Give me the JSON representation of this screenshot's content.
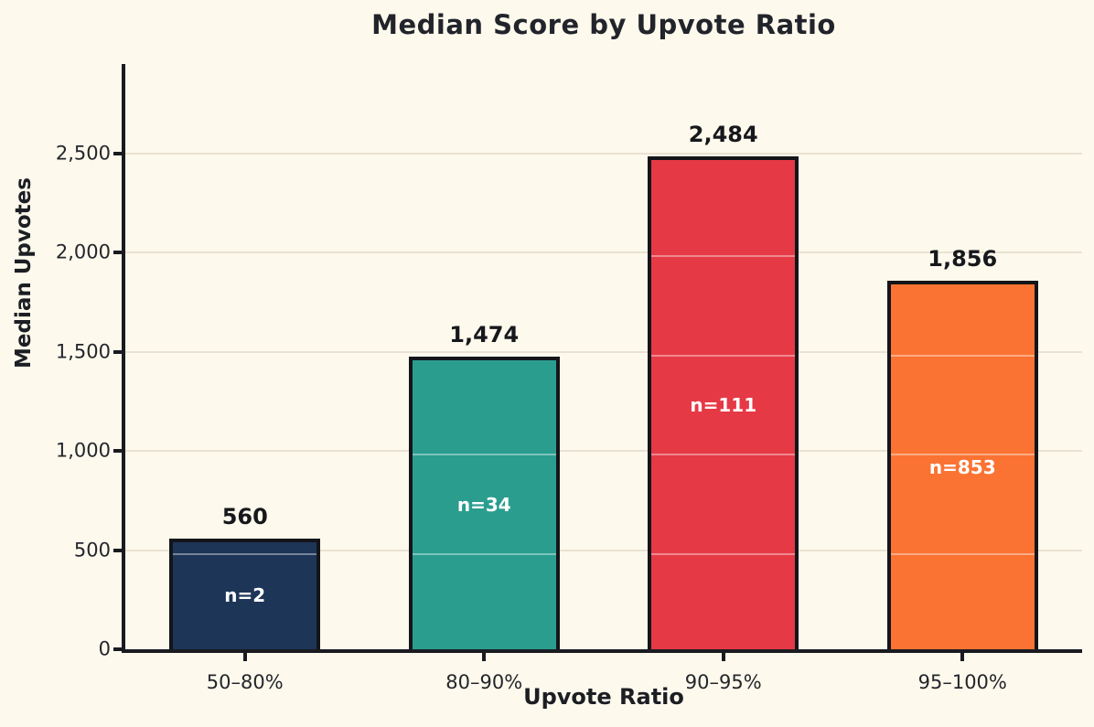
{
  "chart_data": {
    "type": "bar",
    "title": "Median Score by Upvote Ratio",
    "xlabel": "Upvote Ratio",
    "ylabel": "Median Upvotes",
    "categories": [
      "50–80%",
      "80–90%",
      "90–95%",
      "95–100%"
    ],
    "values": [
      560,
      1474,
      2484,
      1856
    ],
    "value_labels": [
      "560",
      "1,474",
      "2,484",
      "1,856"
    ],
    "n_labels": [
      "n=2",
      "n=34",
      "n=111",
      "n=853"
    ],
    "bar_colors": [
      "#1d3557",
      "#2a9d8f",
      "#e63946",
      "#fb7333"
    ],
    "ylim": [
      0,
      2950
    ],
    "yticks": [
      0,
      500,
      1000,
      1500,
      2000,
      2500
    ],
    "ytick_labels": [
      "0",
      "500",
      "1,000",
      "1,500",
      "2,000",
      "2,500"
    ],
    "grid": "horizontal",
    "legend": "none",
    "background_color": "#fdf9ec",
    "grid_color": "#e9e2d2"
  }
}
